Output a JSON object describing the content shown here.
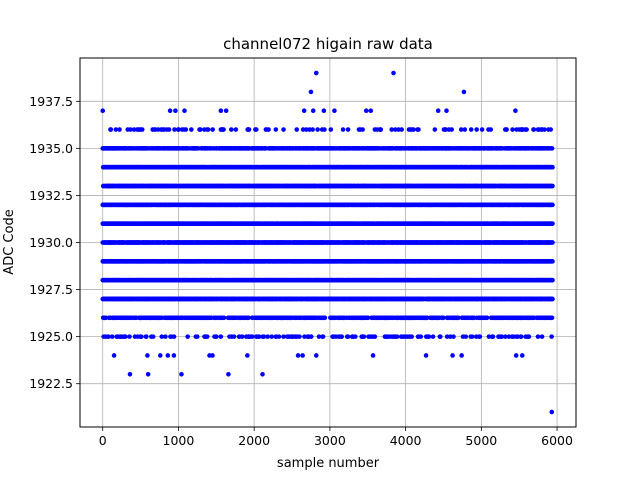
{
  "chart_data": {
    "type": "scatter",
    "title": "channel072 higain raw data",
    "xlabel": "sample number",
    "ylabel": "ADC Code",
    "xlim": [
      -300,
      6250
    ],
    "ylim": [
      1920.2,
      1939.8
    ],
    "xticks": [
      0,
      1000,
      2000,
      3000,
      4000,
      5000,
      6000
    ],
    "xtick_labels": [
      "0",
      "1000",
      "2000",
      "3000",
      "4000",
      "5000",
      "6000"
    ],
    "yticks": [
      1922.5,
      1925.0,
      1927.5,
      1930.0,
      1932.5,
      1935.0,
      1937.5
    ],
    "ytick_labels": [
      "1922.5",
      "1925.0",
      "1927.5",
      "1930.0",
      "1932.5",
      "1935.0",
      "1937.5"
    ],
    "grid": true,
    "marker_color": "#0000ff",
    "n_samples": 5940,
    "sample_step": 1,
    "dense_levels": [
      1927,
      1928,
      1929,
      1930,
      1931,
      1932,
      1933,
      1934
    ],
    "sparse_levels": [
      {
        "y": 1935,
        "fraction": 0.62
      },
      {
        "y": 1926,
        "fraction": 0.45
      },
      {
        "y": 1936,
        "fraction": 0.14
      },
      {
        "y": 1925,
        "fraction": 0.16
      }
    ],
    "points": [
      {
        "x": 0,
        "y": 1937
      },
      {
        "x": 890,
        "y": 1937
      },
      {
        "x": 960,
        "y": 1937
      },
      {
        "x": 1080,
        "y": 1937
      },
      {
        "x": 1560,
        "y": 1937
      },
      {
        "x": 1630,
        "y": 1937
      },
      {
        "x": 2660,
        "y": 1937
      },
      {
        "x": 2780,
        "y": 1937
      },
      {
        "x": 2920,
        "y": 1937
      },
      {
        "x": 3060,
        "y": 1937
      },
      {
        "x": 3480,
        "y": 1937
      },
      {
        "x": 3540,
        "y": 1937
      },
      {
        "x": 4430,
        "y": 1937
      },
      {
        "x": 4540,
        "y": 1937
      },
      {
        "x": 5450,
        "y": 1937
      },
      {
        "x": 2750,
        "y": 1938
      },
      {
        "x": 4770,
        "y": 1938
      },
      {
        "x": 2820,
        "y": 1939
      },
      {
        "x": 3840,
        "y": 1939
      },
      {
        "x": 150,
        "y": 1924
      },
      {
        "x": 590,
        "y": 1924
      },
      {
        "x": 760,
        "y": 1924
      },
      {
        "x": 860,
        "y": 1924
      },
      {
        "x": 940,
        "y": 1924
      },
      {
        "x": 1410,
        "y": 1924
      },
      {
        "x": 1450,
        "y": 1924
      },
      {
        "x": 1910,
        "y": 1924
      },
      {
        "x": 2580,
        "y": 1924
      },
      {
        "x": 2640,
        "y": 1924
      },
      {
        "x": 2820,
        "y": 1924
      },
      {
        "x": 3570,
        "y": 1924
      },
      {
        "x": 4270,
        "y": 1924
      },
      {
        "x": 4620,
        "y": 1924
      },
      {
        "x": 4740,
        "y": 1924
      },
      {
        "x": 5460,
        "y": 1924
      },
      {
        "x": 5540,
        "y": 1924
      },
      {
        "x": 360,
        "y": 1923
      },
      {
        "x": 600,
        "y": 1923
      },
      {
        "x": 1040,
        "y": 1923
      },
      {
        "x": 1660,
        "y": 1923
      },
      {
        "x": 2110,
        "y": 1923
      },
      {
        "x": 5930,
        "y": 1921
      }
    ]
  }
}
